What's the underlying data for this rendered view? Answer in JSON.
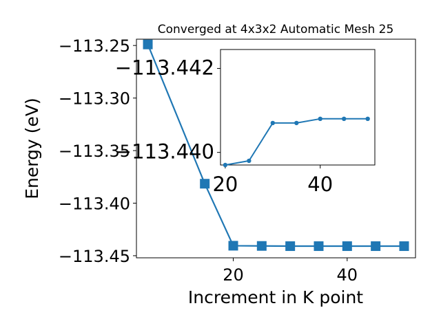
{
  "chart_data": [
    {
      "id": "main",
      "type": "line",
      "title": "Converged at 4x3x2 Automatic Mesh 25",
      "xlabel": "Increment in K point",
      "ylabel": "Energy (eV)",
      "xlim": [
        3,
        52
      ],
      "ylim": [
        -113.452,
        -113.244
      ],
      "xticks": [
        20,
        40
      ],
      "yticks": [
        -113.25,
        -113.3,
        -113.35,
        -113.4,
        -113.45
      ],
      "ytick_labels": [
        "−113.25",
        "−113.30",
        "−113.35",
        "−113.40",
        "−113.45"
      ],
      "marker": "square",
      "color": "#1f77b4",
      "series": [
        {
          "x": [
            5,
            15,
            20,
            25,
            30,
            35,
            40,
            45,
            50
          ],
          "y": [
            -113.249,
            -113.3815,
            -113.4405,
            -113.4407,
            -113.4409,
            -113.4409,
            -113.4409,
            -113.4409,
            -113.4409
          ]
        }
      ]
    },
    {
      "id": "inset",
      "type": "line",
      "xlim": [
        19,
        51.5
      ],
      "ylim": [
        -113.4397,
        -113.44245
      ],
      "xticks": [
        20,
        40
      ],
      "yticks": [
        -113.442,
        -113.44
      ],
      "ytick_labels": [
        "−113.442",
        "−113.440"
      ],
      "marker": "circle",
      "color": "#1f77b4",
      "series": [
        {
          "x": [
            20,
            25,
            30,
            35,
            40,
            45,
            50
          ],
          "y": [
            -113.4397,
            -113.4398,
            -113.4407,
            -113.4407,
            -113.4408,
            -113.4408,
            -113.4408
          ]
        }
      ]
    }
  ]
}
